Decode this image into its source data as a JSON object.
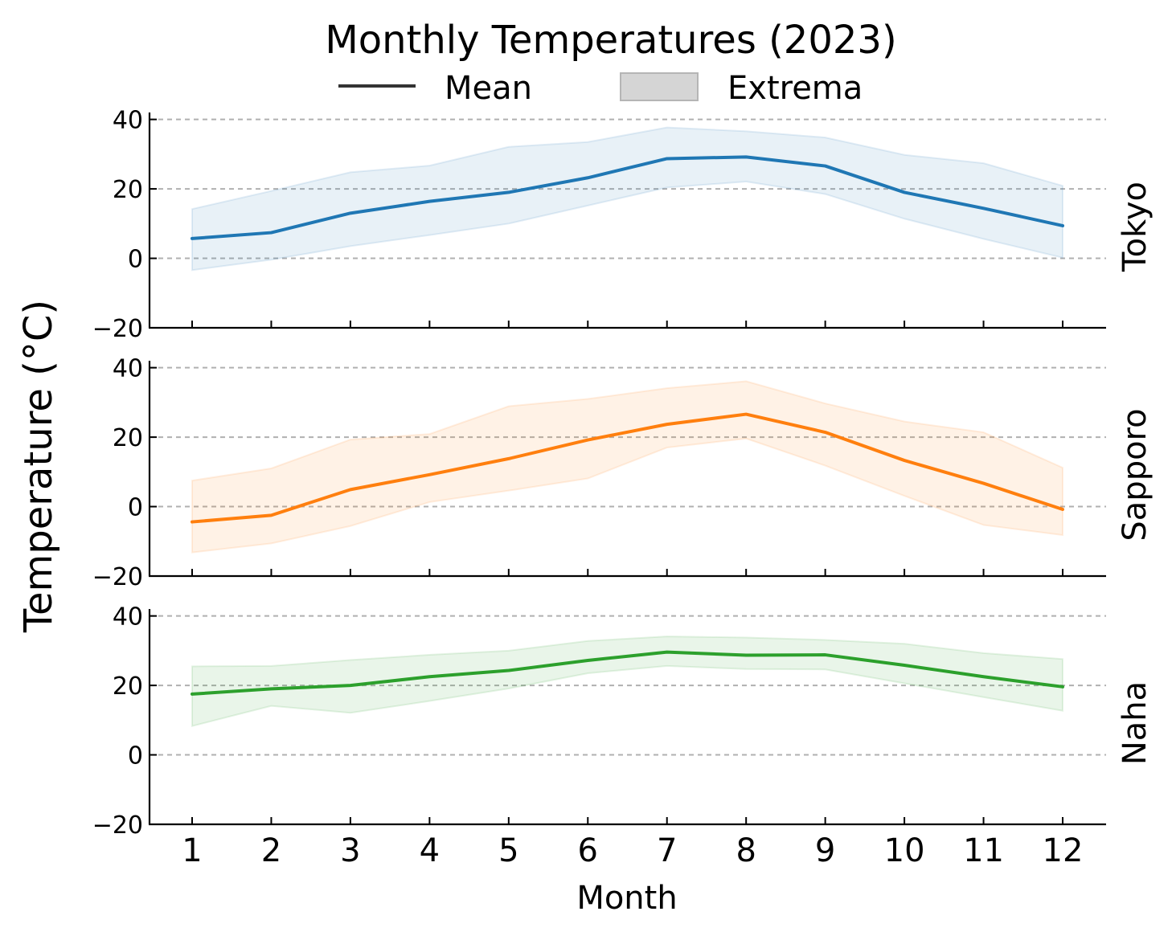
{
  "chart_data": {
    "type": "line",
    "title": "Monthly Temperatures (2023)",
    "xlabel": "Month",
    "ylabel": "Temperature (°C)",
    "legend": {
      "placement": "top-center",
      "entries": [
        {
          "label": "Mean",
          "kind": "line",
          "color": "#333333"
        },
        {
          "label": "Extrema",
          "kind": "band",
          "color": "#d3d3d3"
        }
      ]
    },
    "x": [
      1,
      2,
      3,
      4,
      5,
      6,
      7,
      8,
      9,
      10,
      11,
      12
    ],
    "ylim": [
      -20,
      42
    ],
    "yticks": [
      -20,
      0,
      20,
      40
    ],
    "grid": "horizontal-dashed",
    "panels": [
      {
        "name": "Tokyo",
        "color": "#1f77b4",
        "mean": [
          5.7,
          7.4,
          13.0,
          16.4,
          19.0,
          23.2,
          28.7,
          29.2,
          26.6,
          19.0,
          14.4,
          9.4
        ],
        "max": [
          14.2,
          19.4,
          24.8,
          26.7,
          32.1,
          33.5,
          37.7,
          36.6,
          34.8,
          29.8,
          27.4,
          20.9
        ],
        "min": [
          -3.4,
          -0.4,
          3.5,
          6.7,
          10.0,
          15.2,
          20.4,
          22.1,
          18.5,
          11.4,
          5.6,
          0.2
        ]
      },
      {
        "name": "Sapporo",
        "color": "#ff7f0e",
        "mean": [
          -4.4,
          -2.5,
          4.9,
          9.2,
          13.8,
          19.2,
          23.7,
          26.6,
          21.4,
          13.3,
          6.7,
          -0.8
        ],
        "max": [
          7.5,
          11.0,
          19.3,
          20.9,
          28.9,
          31.0,
          34.1,
          36.1,
          29.7,
          24.5,
          21.4,
          11.2
        ],
        "min": [
          -13.2,
          -10.6,
          -5.6,
          1.3,
          4.6,
          8.1,
          17.0,
          19.6,
          11.8,
          3.1,
          -5.3,
          -8.2
        ]
      },
      {
        "name": "Naha",
        "color": "#2ca02c",
        "mean": [
          17.5,
          19.0,
          20.0,
          22.5,
          24.3,
          27.2,
          29.6,
          28.7,
          28.8,
          25.8,
          22.5,
          19.6
        ],
        "max": [
          25.5,
          25.6,
          27.3,
          28.8,
          30.0,
          32.8,
          34.1,
          33.8,
          33.1,
          32.0,
          29.3,
          27.6
        ],
        "min": [
          8.3,
          14.1,
          12.1,
          15.5,
          19.1,
          23.5,
          25.6,
          24.7,
          24.6,
          20.6,
          16.6,
          12.7
        ]
      }
    ]
  }
}
